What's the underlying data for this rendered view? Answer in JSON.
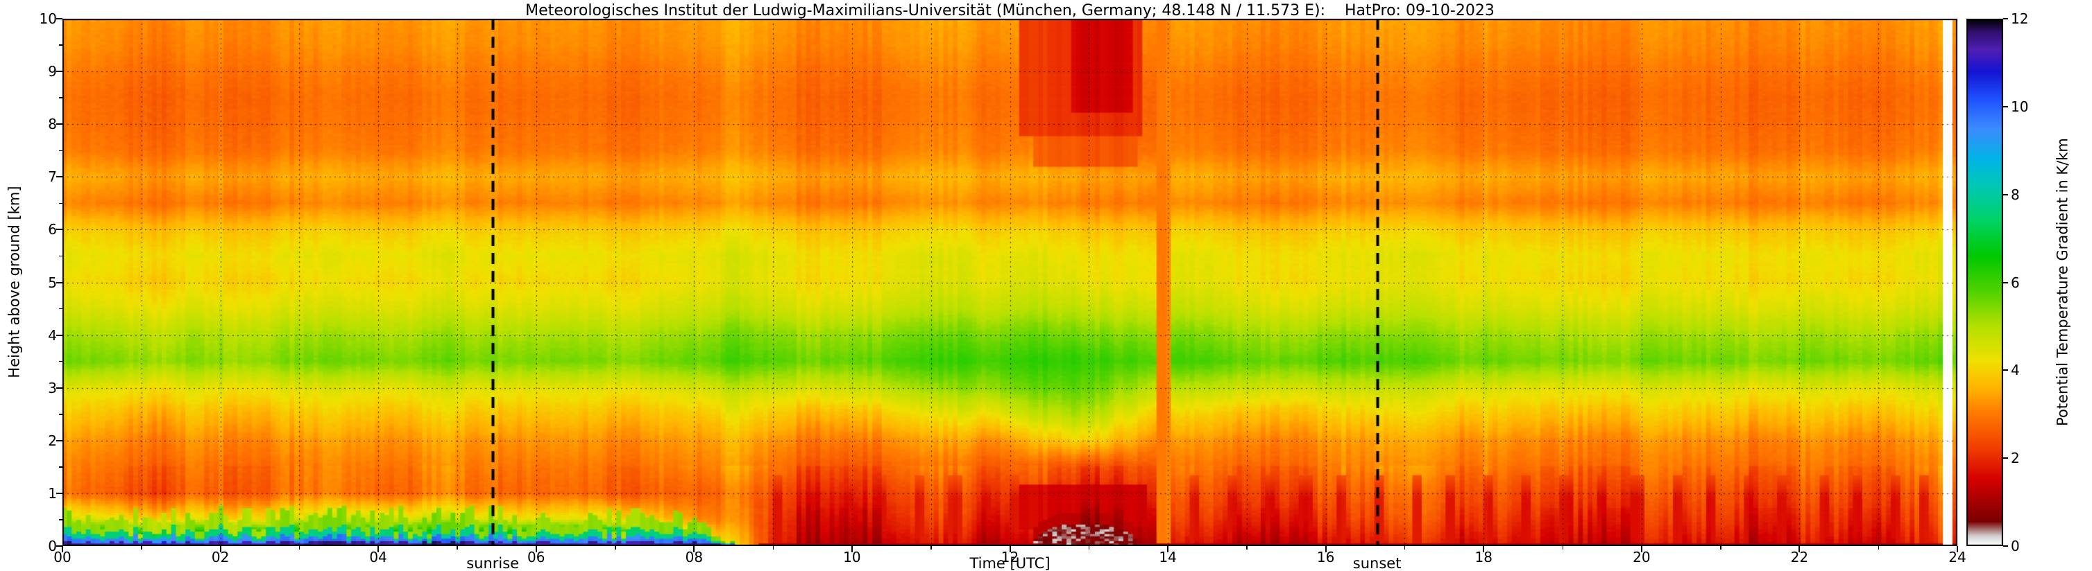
{
  "title": "Meteorologisches Institut der Ludwig-Maximilians-Universität (München, Germany; 48.148 N / 11.573 E):    HatPro: 09-10-2023",
  "axes": {
    "x": {
      "label": "Time [UTC]",
      "min": 0,
      "max": 24,
      "major_tick_values": [
        0,
        2,
        4,
        6,
        8,
        10,
        12,
        14,
        16,
        18,
        20,
        22,
        24
      ],
      "major_tick_labels": [
        "00",
        "02",
        "04",
        "06",
        "08",
        "10",
        "12",
        "14",
        "16",
        "18",
        "20",
        "22",
        "24"
      ],
      "minor_tick_step_hours": 1
    },
    "y": {
      "label": "Height above ground [km]",
      "min": 0,
      "max": 10,
      "major_tick_values": [
        0,
        1,
        2,
        3,
        4,
        5,
        6,
        7,
        8,
        9,
        10
      ],
      "major_tick_labels": [
        "0",
        "1",
        "2",
        "3",
        "4",
        "5",
        "6",
        "7",
        "8",
        "9",
        "10"
      ],
      "minor_tick_step_km": 0.5
    },
    "colorbar": {
      "label": "Potential Temperature Gradient in K/km",
      "min": 0,
      "max": 12,
      "tick_values": [
        0,
        2,
        4,
        6,
        8,
        10,
        12
      ],
      "tick_labels": [
        "0",
        "2",
        "4",
        "6",
        "8",
        "10",
        "12"
      ]
    }
  },
  "annotations": {
    "sunrise": {
      "label": "sunrise",
      "time_utc": 5.45
    },
    "sunset": {
      "label": "sunset",
      "time_utc": 16.65
    }
  },
  "chart_data": {
    "type": "heatmap",
    "title": "Meteorologisches Institut der Ludwig-Maximilians-Universität (München, Germany; 48.148 N / 11.573 E):    HatPro: 09-10-2023",
    "xlabel": "Time [UTC]",
    "ylabel": "Height above ground [km]",
    "zlabel": "Potential Temperature Gradient in K/km",
    "x_range_hours": [
      0,
      24
    ],
    "y_range_km": [
      0,
      10
    ],
    "z_range": [
      0,
      12
    ],
    "grid": "dotted, 1 h vertical, 1 km horizontal",
    "x_hours": [
      0,
      1,
      2,
      3,
      4,
      5,
      6,
      7,
      8,
      9,
      10,
      11,
      12,
      13,
      14,
      15,
      16,
      17,
      18,
      19,
      20,
      21,
      22,
      23,
      24
    ],
    "heights_km": [
      0,
      0.5,
      1,
      1.5,
      2,
      2.5,
      3,
      3.5,
      4,
      4.5,
      5,
      5.5,
      6,
      6.5,
      7,
      7.5,
      8,
      8.5,
      9,
      9.5,
      10
    ],
    "values": [
      [
        9,
        9,
        9,
        9,
        9,
        9,
        9,
        9,
        5,
        1.8,
        1.4,
        1.3,
        1.2,
        0.9,
        1.5,
        1.5,
        1.6,
        1.6,
        1.8,
        1.8,
        1.8,
        1.8,
        1.8,
        1.8,
        1.8
      ],
      [
        4.5,
        4.4,
        4.3,
        4.5,
        4.7,
        4.5,
        4.3,
        4.5,
        3.2,
        2.0,
        1.8,
        1.8,
        1.7,
        1.3,
        2.0,
        2.1,
        2.2,
        2.2,
        2.3,
        2.2,
        2.2,
        2.3,
        2.2,
        2.3,
        2.2
      ],
      [
        2.8,
        2.7,
        2.8,
        2.9,
        2.8,
        2.8,
        2.8,
        2.8,
        2.6,
        2.3,
        2.2,
        2.2,
        2.1,
        1.9,
        2.4,
        2.5,
        2.6,
        2.6,
        2.6,
        2.6,
        2.6,
        2.6,
        2.6,
        2.6,
        2.6
      ],
      [
        3,
        3,
        3,
        3,
        3,
        3,
        3,
        3,
        3,
        2.8,
        2.7,
        2.7,
        2.6,
        2.5,
        2.8,
        2.9,
        3,
        3,
        3,
        3,
        3,
        3,
        3,
        3,
        3
      ],
      [
        3.3,
        3.3,
        3.3,
        3.3,
        3.3,
        3.3,
        3.3,
        3.3,
        3.3,
        3.2,
        3.2,
        3.2,
        3.3,
        4.2,
        3.2,
        3.3,
        3.3,
        3.3,
        3.3,
        3.3,
        3.3,
        3.3,
        3.3,
        3.3,
        3.3
      ],
      [
        3.8,
        3.8,
        3.8,
        3.8,
        3.8,
        3.8,
        3.8,
        3.8,
        3.8,
        3.8,
        3.9,
        4.0,
        4.4,
        5.2,
        3.9,
        3.9,
        3.9,
        3.9,
        3.9,
        3.9,
        3.9,
        3.9,
        3.9,
        3.9,
        3.9
      ],
      [
        4.4,
        4.4,
        4.4,
        4.4,
        4.4,
        4.4,
        4.4,
        4.4,
        4.5,
        4.6,
        4.8,
        5.0,
        5.4,
        5.8,
        4.8,
        4.8,
        4.7,
        4.6,
        4.5,
        4.5,
        4.5,
        4.5,
        4.5,
        4.5,
        4.5
      ],
      [
        5.5,
        5.5,
        5.4,
        5.5,
        5.5,
        5.5,
        5.5,
        5.5,
        5.6,
        5.7,
        5.8,
        5.9,
        6.0,
        6.2,
        5.9,
        5.8,
        5.8,
        5.7,
        5.6,
        5.6,
        5.6,
        5.6,
        5.6,
        5.6,
        5.6
      ],
      [
        5.1,
        5.1,
        5.1,
        5.1,
        5.1,
        5.1,
        5.1,
        5.1,
        5.2,
        5.3,
        5.4,
        5.4,
        5.5,
        5.6,
        5.4,
        5.3,
        5.3,
        5.2,
        5.2,
        5.2,
        5.2,
        5.2,
        5.2,
        5.2,
        5.2
      ],
      [
        4.5,
        4.5,
        4.5,
        4.5,
        4.5,
        4.5,
        4.5,
        4.5,
        4.6,
        4.6,
        4.7,
        4.7,
        4.8,
        4.9,
        4.7,
        4.7,
        4.6,
        4.6,
        4.6,
        4.6,
        4.6,
        4.6,
        4.6,
        4.6,
        4.6
      ],
      [
        4.1,
        4.1,
        4.1,
        4.1,
        4.1,
        4.1,
        4.1,
        4.1,
        4.2,
        4.2,
        4.3,
        4.3,
        4.4,
        4.4,
        4.3,
        4.3,
        4.2,
        4.2,
        4.2,
        4.2,
        4.2,
        4.2,
        4.2,
        4.2,
        4.2
      ],
      [
        4.3,
        4.3,
        4.3,
        4.3,
        4.3,
        4.3,
        4.3,
        4.3,
        4.3,
        4.3,
        4.3,
        4.3,
        4.3,
        4.3,
        4.3,
        4.3,
        4.3,
        4.3,
        4.3,
        4.3,
        4.3,
        4.3,
        4.3,
        4.3,
        4.3
      ],
      [
        3.9,
        3.9,
        3.9,
        3.9,
        3.9,
        3.9,
        3.9,
        3.9,
        3.9,
        3.9,
        3.9,
        3.9,
        3.9,
        3.9,
        3.9,
        3.9,
        3.9,
        3.9,
        3.9,
        3.9,
        3.9,
        3.9,
        3.9,
        3.9,
        3.9
      ],
      [
        3.1,
        3.1,
        3.1,
        3.1,
        3.1,
        3.1,
        3.1,
        3.1,
        3.1,
        3.1,
        3.1,
        3.1,
        3.1,
        3.1,
        3.1,
        3.1,
        3.1,
        3.1,
        3.1,
        3.1,
        3.1,
        3.1,
        3.1,
        3.1,
        3.1
      ],
      [
        3.5,
        3.5,
        3.5,
        3.5,
        3.5,
        3.5,
        3.5,
        3.5,
        3.5,
        3.5,
        3.5,
        3.5,
        3.5,
        3.5,
        3.5,
        3.5,
        3.5,
        3.5,
        3.5,
        3.5,
        3.5,
        3.5,
        3.5,
        3.5,
        3.5
      ],
      [
        3.0,
        3.0,
        3.0,
        3.0,
        3.0,
        3.0,
        3.0,
        3.0,
        3.0,
        3.0,
        3.0,
        3.0,
        3.0,
        3.0,
        3.0,
        3.0,
        3.0,
        3.0,
        3.0,
        3.0,
        3.0,
        3.0,
        3.0,
        3.0,
        3.0
      ],
      [
        2.9,
        2.9,
        2.9,
        2.9,
        2.9,
        2.9,
        2.9,
        2.9,
        2.9,
        2.9,
        2.9,
        2.9,
        2.9,
        2.9,
        2.9,
        2.9,
        2.9,
        2.9,
        2.9,
        2.9,
        2.9,
        2.9,
        2.9,
        2.9,
        2.9
      ],
      [
        2.85,
        2.85,
        2.85,
        2.85,
        2.85,
        2.85,
        2.85,
        2.85,
        2.85,
        2.85,
        2.85,
        2.85,
        2.85,
        2.85,
        2.85,
        2.85,
        2.85,
        2.85,
        2.85,
        2.85,
        2.85,
        2.85,
        2.85,
        2.85,
        2.85
      ],
      [
        3.0,
        3.0,
        3.0,
        3.0,
        3.0,
        3.0,
        3.0,
        3.0,
        3.0,
        3.0,
        3.0,
        3.0,
        3.0,
        3.0,
        3.0,
        3.0,
        3.0,
        3.0,
        3.0,
        3.0,
        3.0,
        3.0,
        3.0,
        3.0,
        3.0
      ],
      [
        3.2,
        3.2,
        3.2,
        3.2,
        3.2,
        3.2,
        3.2,
        3.2,
        3.2,
        3.2,
        3.2,
        3.2,
        3.2,
        3.2,
        3.2,
        3.2,
        3.2,
        3.2,
        3.2,
        3.2,
        3.2,
        3.2,
        3.2,
        3.2,
        3.2
      ],
      [
        3.3,
        3.3,
        3.3,
        3.3,
        3.3,
        3.3,
        3.3,
        3.3,
        3.3,
        3.3,
        3.3,
        3.3,
        3.3,
        3.3,
        3.3,
        3.3,
        3.3,
        3.3,
        3.3,
        3.3,
        3.3,
        3.3,
        3.3,
        3.3,
        3.3
      ]
    ],
    "colormap_stops": [
      [
        0,
        "#ffffff"
      ],
      [
        0.22,
        "#d2d2d2"
      ],
      [
        0.55,
        "#7a0000"
      ],
      [
        1.5,
        "#d40000"
      ],
      [
        2.2,
        "#f03c00"
      ],
      [
        3.0,
        "#ff7800"
      ],
      [
        3.6,
        "#ffb400"
      ],
      [
        4.2,
        "#f0e000"
      ],
      [
        5.0,
        "#b4e000"
      ],
      [
        5.8,
        "#50d200"
      ],
      [
        6.6,
        "#00c800"
      ],
      [
        7.4,
        "#00d264"
      ],
      [
        8.2,
        "#00c8b4"
      ],
      [
        8.8,
        "#00b4e6"
      ],
      [
        9.5,
        "#3c8cff"
      ],
      [
        10.2,
        "#1e50ff"
      ],
      [
        10.8,
        "#1414d2"
      ],
      [
        11.3,
        "#501eb4"
      ],
      [
        11.7,
        "#32106e"
      ],
      [
        12,
        "#000000"
      ]
    ],
    "features": [
      {
        "name": "upper-level-red-patch",
        "mode": "min",
        "t": [
          12.15,
          13.65
        ],
        "h": [
          7.75,
          10
        ],
        "value": 2.1
      },
      {
        "name": "upper-level-red-core",
        "mode": "min",
        "t": [
          12.8,
          13.58
        ],
        "h": [
          8.2,
          10
        ],
        "value": 1.55
      },
      {
        "name": "upper-red-tendrils",
        "mode": "min",
        "t": [
          12.3,
          13.6
        ],
        "h": [
          7.2,
          7.8
        ],
        "value": 2.6
      },
      {
        "name": "midday-low-red-band",
        "mode": "min",
        "t": [
          12.15,
          13.75
        ],
        "h": [
          0.3,
          1.15
        ],
        "value": 1.5
      },
      {
        "name": "afternoon-transition-column",
        "mode": "set",
        "t": [
          13.86,
          14.02
        ],
        "h": [
          0,
          10
        ],
        "value": 3.1
      },
      {
        "name": "surface-thin-dark-red-line",
        "mode": "set",
        "t": [
          8.8,
          24
        ],
        "h": [
          0,
          0.055
        ],
        "value": 1.0
      }
    ],
    "red_streaks": {
      "times": [
        9.05,
        9.5,
        9.95,
        10.4,
        10.85,
        11.3,
        11.7,
        12.05,
        14.35,
        14.8,
        15.3,
        15.75,
        16.2,
        16.7,
        17.15,
        17.6,
        18.05,
        18.55,
        19.05,
        19.5,
        19.95,
        20.45,
        20.9,
        21.35,
        21.8,
        22.3,
        22.75,
        23.2,
        23.6
      ],
      "half_width": 0.07,
      "h": [
        0.04,
        1.35
      ],
      "value": 1.7
    },
    "surface_layers": {
      "t_full_until": 7.9,
      "t_end": 8.6,
      "layers": [
        {
          "top": 0.06,
          "value": 11.5
        },
        {
          "top": 0.13,
          "value": 9.7
        },
        {
          "top": 0.24,
          "value": 7.7
        },
        {
          "top": 0.46,
          "value": 5.3
        }
      ]
    },
    "mixed_layer_patch": {
      "t": [
        12.3,
        13.62
      ],
      "h_max": 0.42,
      "value": 0.2
    },
    "missing_data_times": [
      [
        23.85,
        23.96
      ]
    ]
  }
}
